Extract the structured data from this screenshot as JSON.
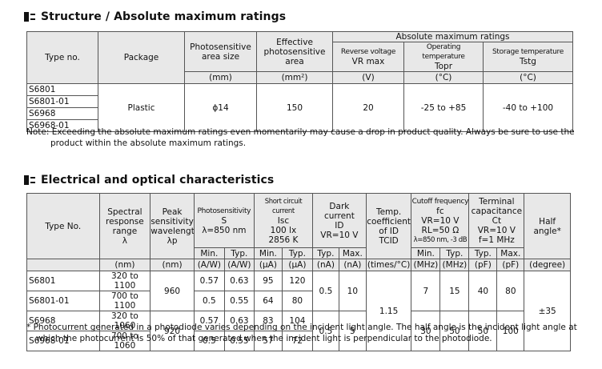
{
  "section1": {
    "title": "Structure / Absolute maximum ratings",
    "headers": {
      "type_no": "Type no.",
      "package": "Package",
      "area_size": "Photosensitive area size",
      "area_size_unit": "(mm)",
      "eff_area": "Effective photosensitive area",
      "eff_area_unit": "(mm²)",
      "abs_max": "Absolute maximum ratings",
      "rev_voltage": "Reverse voltage",
      "rev_voltage_sym": "VR max",
      "rev_voltage_unit": "(V)",
      "op_temp": "Operating temperature",
      "op_temp_sym": "Topr",
      "op_temp_unit": "(°C)",
      "st_temp": "Storage temperature",
      "st_temp_sym": "Tstg",
      "st_temp_unit": "(°C)"
    },
    "types": [
      "S6801",
      "S6801-01",
      "S6968",
      "S6968-01"
    ],
    "package": "Plastic",
    "area_size": "ϕ14",
    "eff_area": "150",
    "rev_voltage": "20",
    "op_temp": "-25 to +85",
    "st_temp": "-40 to +100",
    "note_line1": "Note: Exceeding the absolute maximum ratings even momentarily may cause a drop in product quality. Always be sure to use the",
    "note_line2": "product within the absolute maximum ratings."
  },
  "section2": {
    "title": "Electrical and optical characteristics",
    "headers": {
      "type_no": "Type No.",
      "spectral": "Spectral response range",
      "spectral_sym": "λ",
      "spectral_unit": "(nm)",
      "peak": "Peak sensitivity wavelength",
      "peak_sym": "λp",
      "peak_unit": "(nm)",
      "photosens": "Photosensitivity",
      "photosens_sym": "S",
      "photosens_cond": "λ=850 nm",
      "isc": "Short circuit current",
      "isc_sym": "Isc",
      "isc_cond1": "100 lx",
      "isc_cond2": "2856 K",
      "dark": "Dark current",
      "dark_sym": "ID",
      "dark_cond": "VR=10 V",
      "temp_coef": "Temp. coefficient of ID",
      "temp_coef_sym": "TCID",
      "temp_coef_unit": "(times/°C)",
      "cutoff": "Cutoff frequency",
      "cutoff_sym": "fc",
      "cutoff_cond1": "VR=10 V",
      "cutoff_cond2": "RL=50 Ω",
      "cutoff_cond3": "λ=850 nm, -3 dB",
      "cap": "Terminal capacitance",
      "cap_sym": "Ct",
      "cap_cond1": "VR=10 V",
      "cap_cond2": "f=1 MHz",
      "half": "Half angle*",
      "half_unit": "(degree)",
      "min": "Min.",
      "typ": "Typ.",
      "max": "Max.",
      "u_aw": "(A/W)",
      "u_ua": "(μA)",
      "u_na": "(nA)",
      "u_mhz": "(MHz)",
      "u_pf": "(pF)"
    },
    "rows": [
      {
        "type": "S6801",
        "spectral": "320 to 1100",
        "s_min": "0.57",
        "s_typ": "0.63",
        "isc_min": "95",
        "isc_typ": "120"
      },
      {
        "type": "S6801-01",
        "spectral": "700 to 1100",
        "s_min": "0.5",
        "s_typ": "0.55",
        "isc_min": "64",
        "isc_typ": "80"
      },
      {
        "type": "S6968",
        "spectral": "320 to 1060",
        "s_min": "0.57",
        "s_typ": "0.63",
        "isc_min": "83",
        "isc_typ": "104"
      },
      {
        "type": "S6968-01",
        "spectral": "700 to 1060",
        "s_min": "0.5",
        "s_typ": "0.55",
        "isc_min": "57",
        "isc_typ": "72"
      }
    ],
    "group1": {
      "peak": "960",
      "dark_typ": "0.5",
      "dark_max": "10",
      "fc_min": "7",
      "fc_typ": "15",
      "ct_typ": "40",
      "ct_max": "80"
    },
    "group2": {
      "peak": "920",
      "dark_typ": "0.5",
      "dark_max": "5",
      "fc_min": "30",
      "fc_typ": "50",
      "ct_typ": "50",
      "ct_max": "100"
    },
    "temp_coef": "1.15",
    "half_angle": "±35",
    "footnote_line1": "* Photocurrent generated in a photodiode varies depending on the incident light angle. The half angle is the incident light angle at",
    "footnote_line2": "which the photocurrent is 50% of that generated when the incident light is perpendicular to the photodiode."
  }
}
